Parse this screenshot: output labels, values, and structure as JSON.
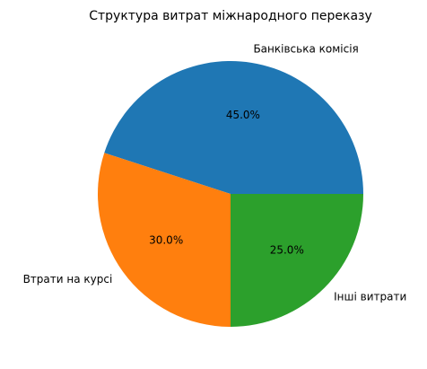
{
  "chart_data": {
    "type": "pie",
    "title": "Структура витрат міжнародного переказу",
    "categories": [
      "Банківська комісія",
      "Втрати на курсі",
      "Інші витрати"
    ],
    "values": [
      45,
      30,
      25
    ],
    "value_labels": [
      "45.0%",
      "30.0%",
      "25.0%"
    ],
    "colors": [
      "#1f77b4",
      "#ff7f0e",
      "#2ca02c"
    ]
  }
}
